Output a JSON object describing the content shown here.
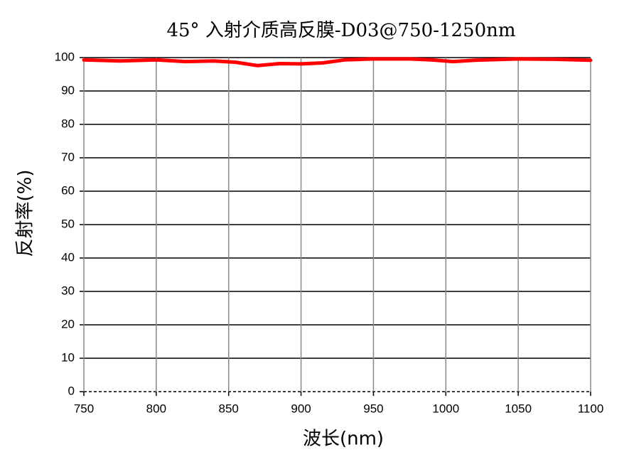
{
  "chart_data": {
    "type": "line",
    "title": "45° 入射介质高反膜-D03@750-1250nm",
    "x_label": "波长(nm)",
    "y_label": "反射率(%)",
    "x": [
      750,
      775,
      800,
      820,
      840,
      855,
      870,
      885,
      900,
      915,
      930,
      950,
      975,
      990,
      1005,
      1020,
      1050,
      1075,
      1100
    ],
    "series": [
      {
        "name": "反射率",
        "color": "#ff0000",
        "values": [
          99.3,
          99.0,
          99.3,
          98.8,
          99.0,
          98.6,
          97.6,
          98.2,
          98.1,
          98.4,
          99.3,
          99.6,
          99.6,
          99.3,
          98.8,
          99.2,
          99.6,
          99.5,
          99.2
        ]
      }
    ],
    "xlim": [
      750,
      1100
    ],
    "xticks": [
      750,
      800,
      850,
      900,
      950,
      1000,
      1050,
      1100
    ],
    "ylim": [
      0,
      100
    ],
    "yticks": [
      0,
      10,
      20,
      30,
      40,
      50,
      60,
      70,
      80,
      90,
      100
    ],
    "grid": true
  }
}
